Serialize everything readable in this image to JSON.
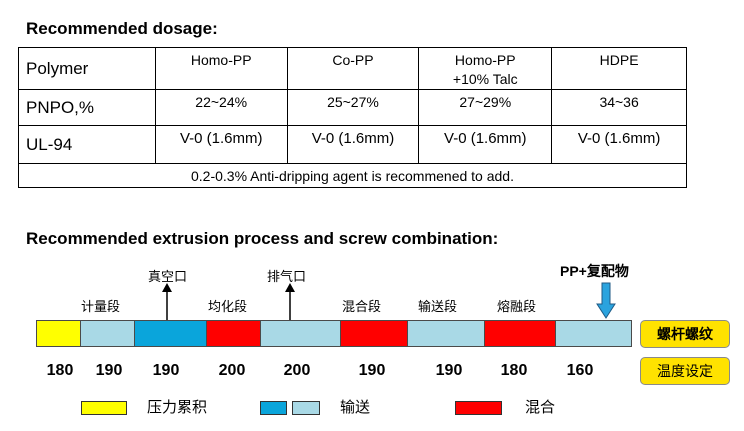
{
  "dosage": {
    "title": "Recommended dosage:",
    "header_label": "Polymer",
    "columns": [
      "Homo-PP",
      "Co-PP",
      "Homo-PP +10% Talc",
      "HDPE"
    ],
    "rows": [
      {
        "label": "PNPO,%",
        "values": [
          "22~24%",
          "25~27%",
          "27~29%",
          "34~36"
        ]
      },
      {
        "label": "UL-94",
        "values": [
          "V-0 (1.6mm)",
          "V-0 (1.6mm)",
          "V-0 (1.6mm)",
          "V-0 (1.6mm)"
        ]
      }
    ],
    "note": "0.2-0.3% Anti-dripping agent is recommened to add."
  },
  "extrusion": {
    "title": "Recommended extrusion process and screw combination:",
    "segments": [
      "计量段",
      "均化段",
      "混合段",
      "输送段",
      "熔融段"
    ],
    "ports": {
      "vacuum": "真空口",
      "vent": "排气口"
    },
    "feed_label": "PP+复配物",
    "temperatures": [
      "180",
      "190",
      "190",
      "200",
      "200",
      "190",
      "190",
      "180",
      "160"
    ],
    "side_labels": {
      "screw": "螺杆螺纹",
      "temp": "温度设定"
    },
    "legend": {
      "pressure": "压力累积",
      "conveying": "输送",
      "mixing": "混合"
    },
    "colors": {
      "pressure": "#ffff00",
      "conveying": "#a9d9e6",
      "conveying_dark": "#0aa5db",
      "mixing": "#ff0000"
    }
  }
}
